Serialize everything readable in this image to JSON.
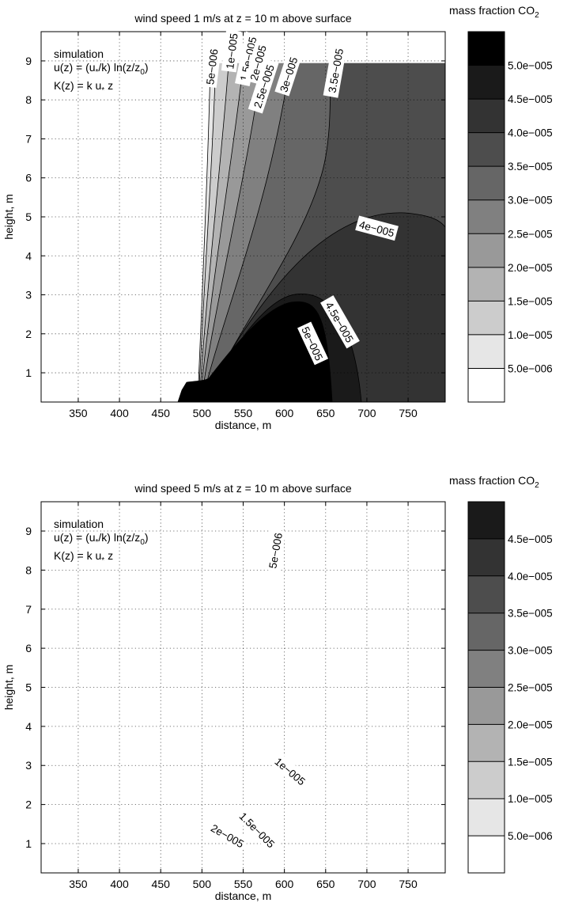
{
  "chart_data": [
    {
      "type": "contour",
      "title": "wind speed 1 m/s at z = 10 m above surface",
      "xlabel": "distance, m",
      "ylabel": "height, m",
      "xlim": [
        305,
        795
      ],
      "ylim": [
        0.25,
        9.75
      ],
      "xticks": [
        "350",
        "400",
        "450",
        "500",
        "550",
        "600",
        "650",
        "700",
        "750"
      ],
      "yticks": [
        "1",
        "2",
        "3",
        "4",
        "5",
        "6",
        "7",
        "8",
        "9"
      ],
      "grid": true,
      "annotation": [
        "simulation",
        "u(z) = (u*/k) ln(z/z0)",
        "K(z) = k u* z"
      ],
      "colorbar": {
        "title": "mass fraction CO2",
        "levels": [
          "5.0e−006",
          "1.0e−005",
          "1.5e−005",
          "2.0e−005",
          "2.5e−005",
          "3.0e−005",
          "3.5e−005",
          "4.0e−005",
          "4.5e−005",
          "5.0e−005"
        ],
        "colors": [
          "#ffffff",
          "#e6e6e6",
          "#cccccc",
          "#b3b3b3",
          "#999999",
          "#808080",
          "#666666",
          "#4d4d4d",
          "#333333",
          "#1a1a1a",
          "#000000"
        ]
      },
      "contour_labels": [
        {
          "text": "5e−006",
          "x": 512,
          "y": 8.85,
          "angle": -83
        },
        {
          "text": "1e−005",
          "x": 536,
          "y": 9.25,
          "angle": -83
        },
        {
          "text": "1.5e−005",
          "x": 556,
          "y": 9.05,
          "angle": -78
        },
        {
          "text": "2e−005",
          "x": 568,
          "y": 8.95,
          "angle": -75
        },
        {
          "text": "2.5e−005",
          "x": 575,
          "y": 8.35,
          "angle": -72
        },
        {
          "text": "3e−005",
          "x": 605,
          "y": 8.65,
          "angle": -72
        },
        {
          "text": "3.5e−005",
          "x": 662,
          "y": 8.75,
          "angle": -80
        },
        {
          "text": "4e−005",
          "x": 712,
          "y": 4.7,
          "angle": 15
        },
        {
          "text": "4.5e−005",
          "x": 667,
          "y": 2.3,
          "angle": 60
        },
        {
          "text": "5e−005",
          "x": 634,
          "y": 1.75,
          "angle": 65
        }
      ]
    },
    {
      "type": "contour",
      "title": "wind speed 5 m/s at z = 10 m above surface",
      "xlabel": "distance, m",
      "ylabel": "height, m",
      "xlim": [
        305,
        795
      ],
      "ylim": [
        0.25,
        9.75
      ],
      "xticks": [
        "350",
        "400",
        "450",
        "500",
        "550",
        "600",
        "650",
        "700",
        "750"
      ],
      "yticks": [
        "1",
        "2",
        "3",
        "4",
        "5",
        "6",
        "7",
        "8",
        "9"
      ],
      "grid": true,
      "annotation": [
        "simulation",
        "u(z) = (u*/k) ln(z/z0)",
        "K(z) = k u* z"
      ],
      "colorbar": {
        "title": "mass fraction CO2",
        "levels": [
          "5.0e−006",
          "1.0e−005",
          "1.5e−005",
          "2.0e−005",
          "2.5e−005",
          "3.0e−005",
          "3.5e−005",
          "4.0e−005",
          "4.5e−005"
        ],
        "colors": [
          "#ffffff",
          "#e6e6e6",
          "#cccccc",
          "#b3b3b3",
          "#999999",
          "#808080",
          "#666666",
          "#4d4d4d",
          "#333333",
          "#1a1a1a"
        ]
      },
      "contour_labels": [
        {
          "text": "5e−006",
          "x": 589,
          "y": 8.5,
          "angle": -80
        },
        {
          "text": "1e−005",
          "x": 607,
          "y": 2.85,
          "angle": 40
        },
        {
          "text": "1.5e−005",
          "x": 567,
          "y": 1.35,
          "angle": 45
        },
        {
          "text": "2e−005",
          "x": 531,
          "y": 1.2,
          "angle": 30
        }
      ]
    }
  ]
}
